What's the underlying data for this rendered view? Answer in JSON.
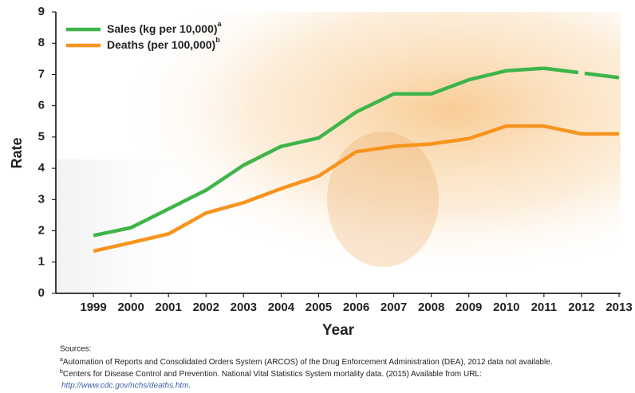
{
  "chart_data": {
    "type": "line",
    "x_label": "Year",
    "y_label": "Rate",
    "x": [
      1999,
      2000,
      2001,
      2002,
      2003,
      2004,
      2005,
      2006,
      2007,
      2008,
      2009,
      2010,
      2011,
      2012,
      2013
    ],
    "series": [
      {
        "name": "Sales (kg per 10,000)",
        "note": "a",
        "color": "#3db54a",
        "values": [
          1.85,
          2.1,
          2.7,
          3.3,
          4.1,
          4.7,
          4.97,
          5.8,
          6.38,
          6.38,
          6.83,
          7.12,
          7.2,
          null,
          6.9
        ]
      },
      {
        "name": "Deaths (per 100,000)",
        "note": "b",
        "color": "#f7941d",
        "values": [
          1.35,
          1.62,
          1.9,
          2.57,
          2.9,
          3.35,
          3.75,
          4.53,
          4.7,
          4.78,
          4.95,
          5.35,
          5.35,
          5.1,
          5.1
        ]
      }
    ],
    "xlim": [
      1998,
      2013
    ],
    "xticks": [
      1999,
      2000,
      2001,
      2002,
      2003,
      2004,
      2005,
      2006,
      2007,
      2008,
      2009,
      2010,
      2011,
      2012,
      2013
    ],
    "ylim": [
      0,
      9
    ],
    "yticks": [
      0,
      1,
      2,
      3,
      4,
      5,
      6,
      7,
      8,
      9
    ],
    "grid": false,
    "legend": "upper left"
  },
  "sources": {
    "label": "Sources:",
    "notes": [
      {
        "mark": "a",
        "text": "Automation of Reports and Consolidated Orders System (ARCOS) of the Drug Enforcement Administration (DEA), 2012 data not available."
      },
      {
        "mark": "b",
        "text": "Centers for Disease Control and Prevention. National Vital Statistics System mortality data. (2015) Available from URL:"
      }
    ],
    "url": "http://www.cdc.gov/nchs/deaths.htm."
  }
}
